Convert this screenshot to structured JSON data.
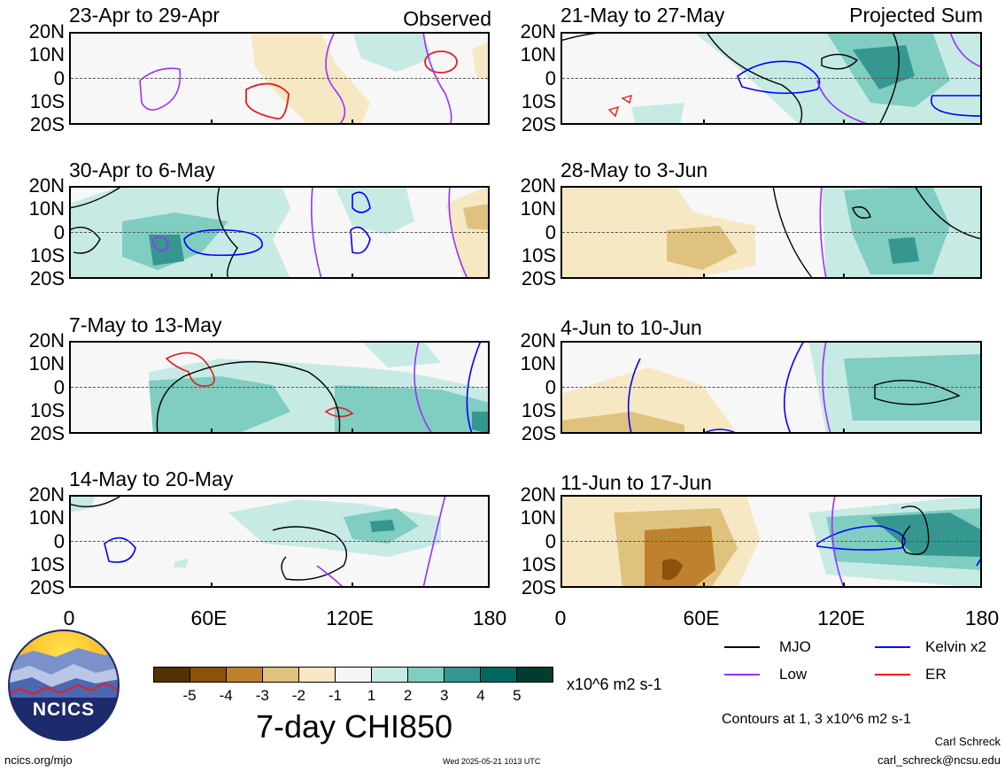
{
  "columns": {
    "left_header": "Observed",
    "right_header": "Projected Sum"
  },
  "panels_left": [
    {
      "title": "23-Apr to 29-Apr"
    },
    {
      "title": "30-Apr to 6-May"
    },
    {
      "title": "7-May to 13-May"
    },
    {
      "title": "14-May to 20-May"
    }
  ],
  "panels_right": [
    {
      "title": "21-May to 27-May"
    },
    {
      "title": "28-May to 3-Jun"
    },
    {
      "title": "4-Jun to 10-Jun"
    },
    {
      "title": "11-Jun to 17-Jun"
    }
  ],
  "lat_labels": [
    "20N",
    "10N",
    "0",
    "10S",
    "20S"
  ],
  "lon_labels": [
    "0",
    "60E",
    "120E",
    "180"
  ],
  "colorbar": {
    "ticks": [
      "-5",
      "-4",
      "-3",
      "-2",
      "-1",
      "1",
      "2",
      "3",
      "4",
      "5"
    ],
    "colors": [
      "#543005",
      "#8c510a",
      "#bf812d",
      "#dfc27d",
      "#f6e8c3",
      "#f5f5f5",
      "#c7eae5",
      "#80cdc1",
      "#35978f",
      "#01665e",
      "#003c30"
    ],
    "units": "x10^6 m2 s-1",
    "title": "7-day CHI850"
  },
  "legend": {
    "items": [
      {
        "label": "MJO",
        "color": "#000000"
      },
      {
        "label": "Kelvin x2",
        "color": "#0000ff"
      },
      {
        "label": "Low",
        "color": "#9b30ff"
      },
      {
        "label": "ER",
        "color": "#ff0000"
      }
    ],
    "contours_note": "Contours at 1, 3 x10^6 m2 s-1"
  },
  "footer": {
    "logo_text": "NCICS",
    "url": "ncics.org/mjo",
    "timestamp": "Wed 2025-05-21 1013 UTC",
    "author": "Carl Schreck",
    "email": "carl_schreck@ncsu.edu"
  }
}
